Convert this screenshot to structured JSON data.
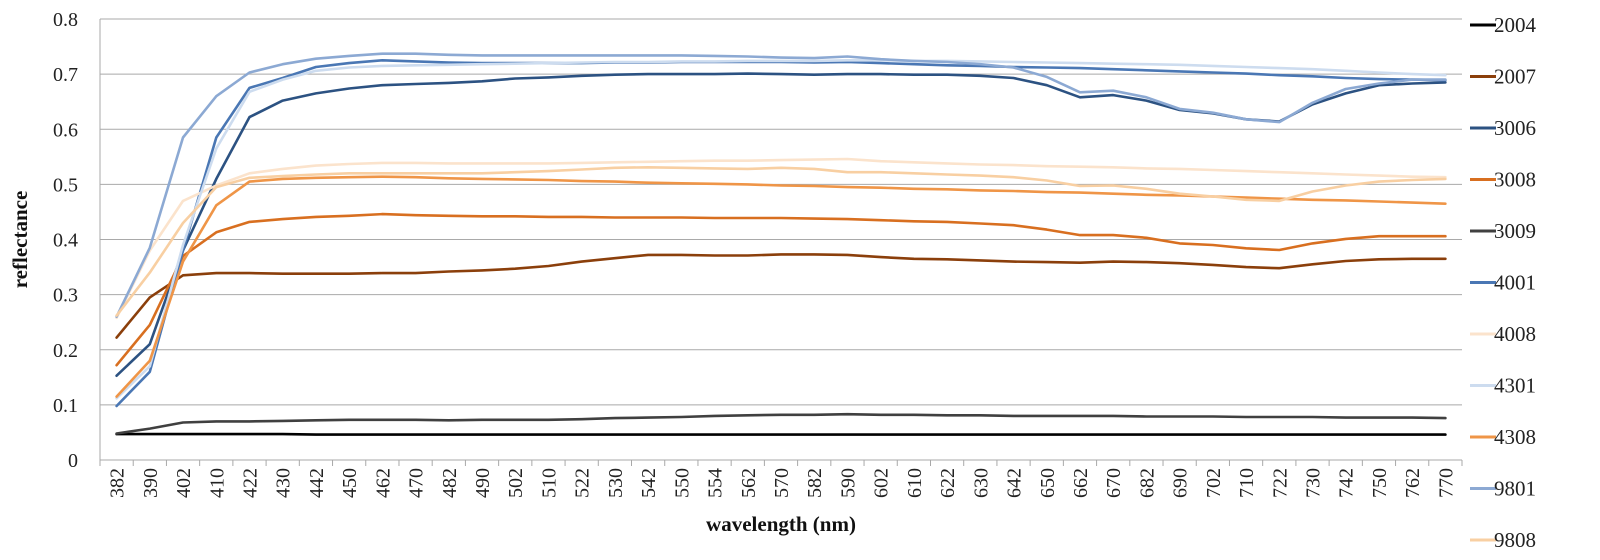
{
  "chart_data": {
    "type": "line",
    "title": "",
    "xlabel": "wavelength (nm)",
    "ylabel": "reflectance",
    "ylim": [
      0,
      0.8
    ],
    "yticks": [
      "0",
      "0.1",
      "0.2",
      "0.3",
      "0.4",
      "0.5",
      "0.6",
      "0.7",
      "0.8"
    ],
    "grid": true,
    "legend_position": "right",
    "categories": [
      "382",
      "390",
      "402",
      "410",
      "422",
      "430",
      "442",
      "450",
      "462",
      "470",
      "482",
      "490",
      "502",
      "510",
      "522",
      "530",
      "542",
      "550",
      "554",
      "562",
      "570",
      "582",
      "590",
      "602",
      "610",
      "622",
      "630",
      "642",
      "650",
      "662",
      "670",
      "682",
      "690",
      "702",
      "710",
      "722",
      "730",
      "742",
      "750",
      "762",
      "770"
    ],
    "series": [
      {
        "name": "2004",
        "color": "#000000",
        "values": [
          0.047,
          0.047,
          0.047,
          0.047,
          0.047,
          0.047,
          0.046,
          0.046,
          0.046,
          0.046,
          0.046,
          0.046,
          0.046,
          0.046,
          0.046,
          0.046,
          0.046,
          0.046,
          0.046,
          0.046,
          0.046,
          0.046,
          0.046,
          0.046,
          0.046,
          0.046,
          0.046,
          0.046,
          0.046,
          0.046,
          0.046,
          0.046,
          0.046,
          0.046,
          0.046,
          0.046,
          0.046,
          0.046,
          0.046,
          0.046,
          0.046
        ]
      },
      {
        "name": "2007",
        "color": "#8b3f0b",
        "values": [
          0.222,
          0.295,
          0.335,
          0.339,
          0.339,
          0.338,
          0.338,
          0.338,
          0.339,
          0.339,
          0.342,
          0.344,
          0.347,
          0.352,
          0.36,
          0.366,
          0.372,
          0.372,
          0.371,
          0.371,
          0.373,
          0.373,
          0.372,
          0.368,
          0.365,
          0.364,
          0.362,
          0.36,
          0.359,
          0.358,
          0.36,
          0.359,
          0.357,
          0.354,
          0.35,
          0.348,
          0.355,
          0.361,
          0.364,
          0.365,
          0.365
        ]
      },
      {
        "name": "3006",
        "color": "#2c5282",
        "values": [
          0.153,
          0.21,
          0.38,
          0.51,
          0.622,
          0.652,
          0.665,
          0.674,
          0.68,
          0.682,
          0.684,
          0.687,
          0.692,
          0.694,
          0.697,
          0.699,
          0.7,
          0.7,
          0.7,
          0.701,
          0.7,
          0.699,
          0.7,
          0.7,
          0.699,
          0.699,
          0.697,
          0.693,
          0.68,
          0.658,
          0.662,
          0.652,
          0.635,
          0.629,
          0.618,
          0.614,
          0.645,
          0.665,
          0.68,
          0.683,
          0.685
        ]
      },
      {
        "name": "3008",
        "color": "#d86f20",
        "values": [
          0.172,
          0.245,
          0.37,
          0.413,
          0.432,
          0.437,
          0.441,
          0.443,
          0.446,
          0.444,
          0.443,
          0.442,
          0.442,
          0.441,
          0.441,
          0.44,
          0.44,
          0.44,
          0.439,
          0.439,
          0.439,
          0.438,
          0.437,
          0.435,
          0.433,
          0.432,
          0.429,
          0.426,
          0.418,
          0.408,
          0.408,
          0.403,
          0.393,
          0.39,
          0.384,
          0.381,
          0.393,
          0.401,
          0.406,
          0.406,
          0.406
        ]
      },
      {
        "name": "3009",
        "color": "#404040",
        "values": [
          0.048,
          0.057,
          0.068,
          0.07,
          0.07,
          0.071,
          0.072,
          0.073,
          0.073,
          0.073,
          0.072,
          0.073,
          0.073,
          0.073,
          0.074,
          0.076,
          0.077,
          0.078,
          0.08,
          0.081,
          0.082,
          0.082,
          0.083,
          0.082,
          0.082,
          0.081,
          0.081,
          0.08,
          0.08,
          0.08,
          0.08,
          0.079,
          0.079,
          0.079,
          0.078,
          0.078,
          0.078,
          0.077,
          0.077,
          0.077,
          0.076
        ]
      },
      {
        "name": "4001",
        "color": "#4a77b4",
        "values": [
          0.098,
          0.16,
          0.38,
          0.585,
          0.675,
          0.693,
          0.713,
          0.72,
          0.725,
          0.723,
          0.721,
          0.72,
          0.72,
          0.72,
          0.72,
          0.721,
          0.721,
          0.722,
          0.722,
          0.722,
          0.722,
          0.721,
          0.722,
          0.72,
          0.718,
          0.716,
          0.715,
          0.713,
          0.712,
          0.711,
          0.709,
          0.707,
          0.705,
          0.703,
          0.701,
          0.698,
          0.696,
          0.693,
          0.691,
          0.69,
          0.689
        ]
      },
      {
        "name": "4008",
        "color": "#fbe3cc",
        "values": [
          0.258,
          0.38,
          0.47,
          0.498,
          0.52,
          0.528,
          0.534,
          0.537,
          0.539,
          0.539,
          0.538,
          0.538,
          0.538,
          0.538,
          0.539,
          0.54,
          0.541,
          0.542,
          0.543,
          0.543,
          0.544,
          0.545,
          0.546,
          0.542,
          0.54,
          0.538,
          0.536,
          0.535,
          0.533,
          0.532,
          0.531,
          0.529,
          0.528,
          0.526,
          0.524,
          0.522,
          0.52,
          0.518,
          0.516,
          0.514,
          0.513
        ]
      },
      {
        "name": "4301",
        "color": "#cddcef",
        "values": [
          0.112,
          0.17,
          0.39,
          0.565,
          0.668,
          0.69,
          0.706,
          0.712,
          0.715,
          0.716,
          0.717,
          0.718,
          0.719,
          0.72,
          0.721,
          0.722,
          0.722,
          0.723,
          0.723,
          0.724,
          0.724,
          0.724,
          0.725,
          0.725,
          0.724,
          0.724,
          0.723,
          0.722,
          0.721,
          0.72,
          0.719,
          0.718,
          0.717,
          0.715,
          0.713,
          0.711,
          0.709,
          0.706,
          0.703,
          0.7,
          0.698
        ]
      },
      {
        "name": "4308",
        "color": "#ef9547",
        "values": [
          0.115,
          0.18,
          0.36,
          0.462,
          0.505,
          0.51,
          0.512,
          0.513,
          0.514,
          0.513,
          0.511,
          0.51,
          0.509,
          0.508,
          0.506,
          0.505,
          0.503,
          0.502,
          0.501,
          0.5,
          0.498,
          0.497,
          0.495,
          0.494,
          0.492,
          0.491,
          0.489,
          0.488,
          0.486,
          0.485,
          0.483,
          0.481,
          0.48,
          0.478,
          0.476,
          0.474,
          0.472,
          0.471,
          0.469,
          0.467,
          0.465
        ]
      },
      {
        "name": "9801",
        "color": "#8ca9d3",
        "values": [
          0.26,
          0.385,
          0.585,
          0.66,
          0.703,
          0.718,
          0.728,
          0.733,
          0.737,
          0.737,
          0.735,
          0.734,
          0.734,
          0.734,
          0.734,
          0.734,
          0.734,
          0.734,
          0.733,
          0.732,
          0.73,
          0.729,
          0.732,
          0.727,
          0.724,
          0.722,
          0.718,
          0.712,
          0.695,
          0.667,
          0.67,
          0.658,
          0.637,
          0.63,
          0.618,
          0.613,
          0.648,
          0.673,
          0.683,
          0.69,
          0.69
        ]
      },
      {
        "name": "9808",
        "color": "#f8cfa2",
        "values": [
          0.262,
          0.34,
          0.43,
          0.495,
          0.512,
          0.515,
          0.518,
          0.52,
          0.52,
          0.52,
          0.52,
          0.52,
          0.522,
          0.524,
          0.527,
          0.53,
          0.531,
          0.53,
          0.529,
          0.528,
          0.53,
          0.528,
          0.522,
          0.522,
          0.52,
          0.518,
          0.516,
          0.513,
          0.507,
          0.497,
          0.498,
          0.492,
          0.483,
          0.478,
          0.472,
          0.47,
          0.487,
          0.498,
          0.505,
          0.508,
          0.51
        ]
      }
    ]
  }
}
